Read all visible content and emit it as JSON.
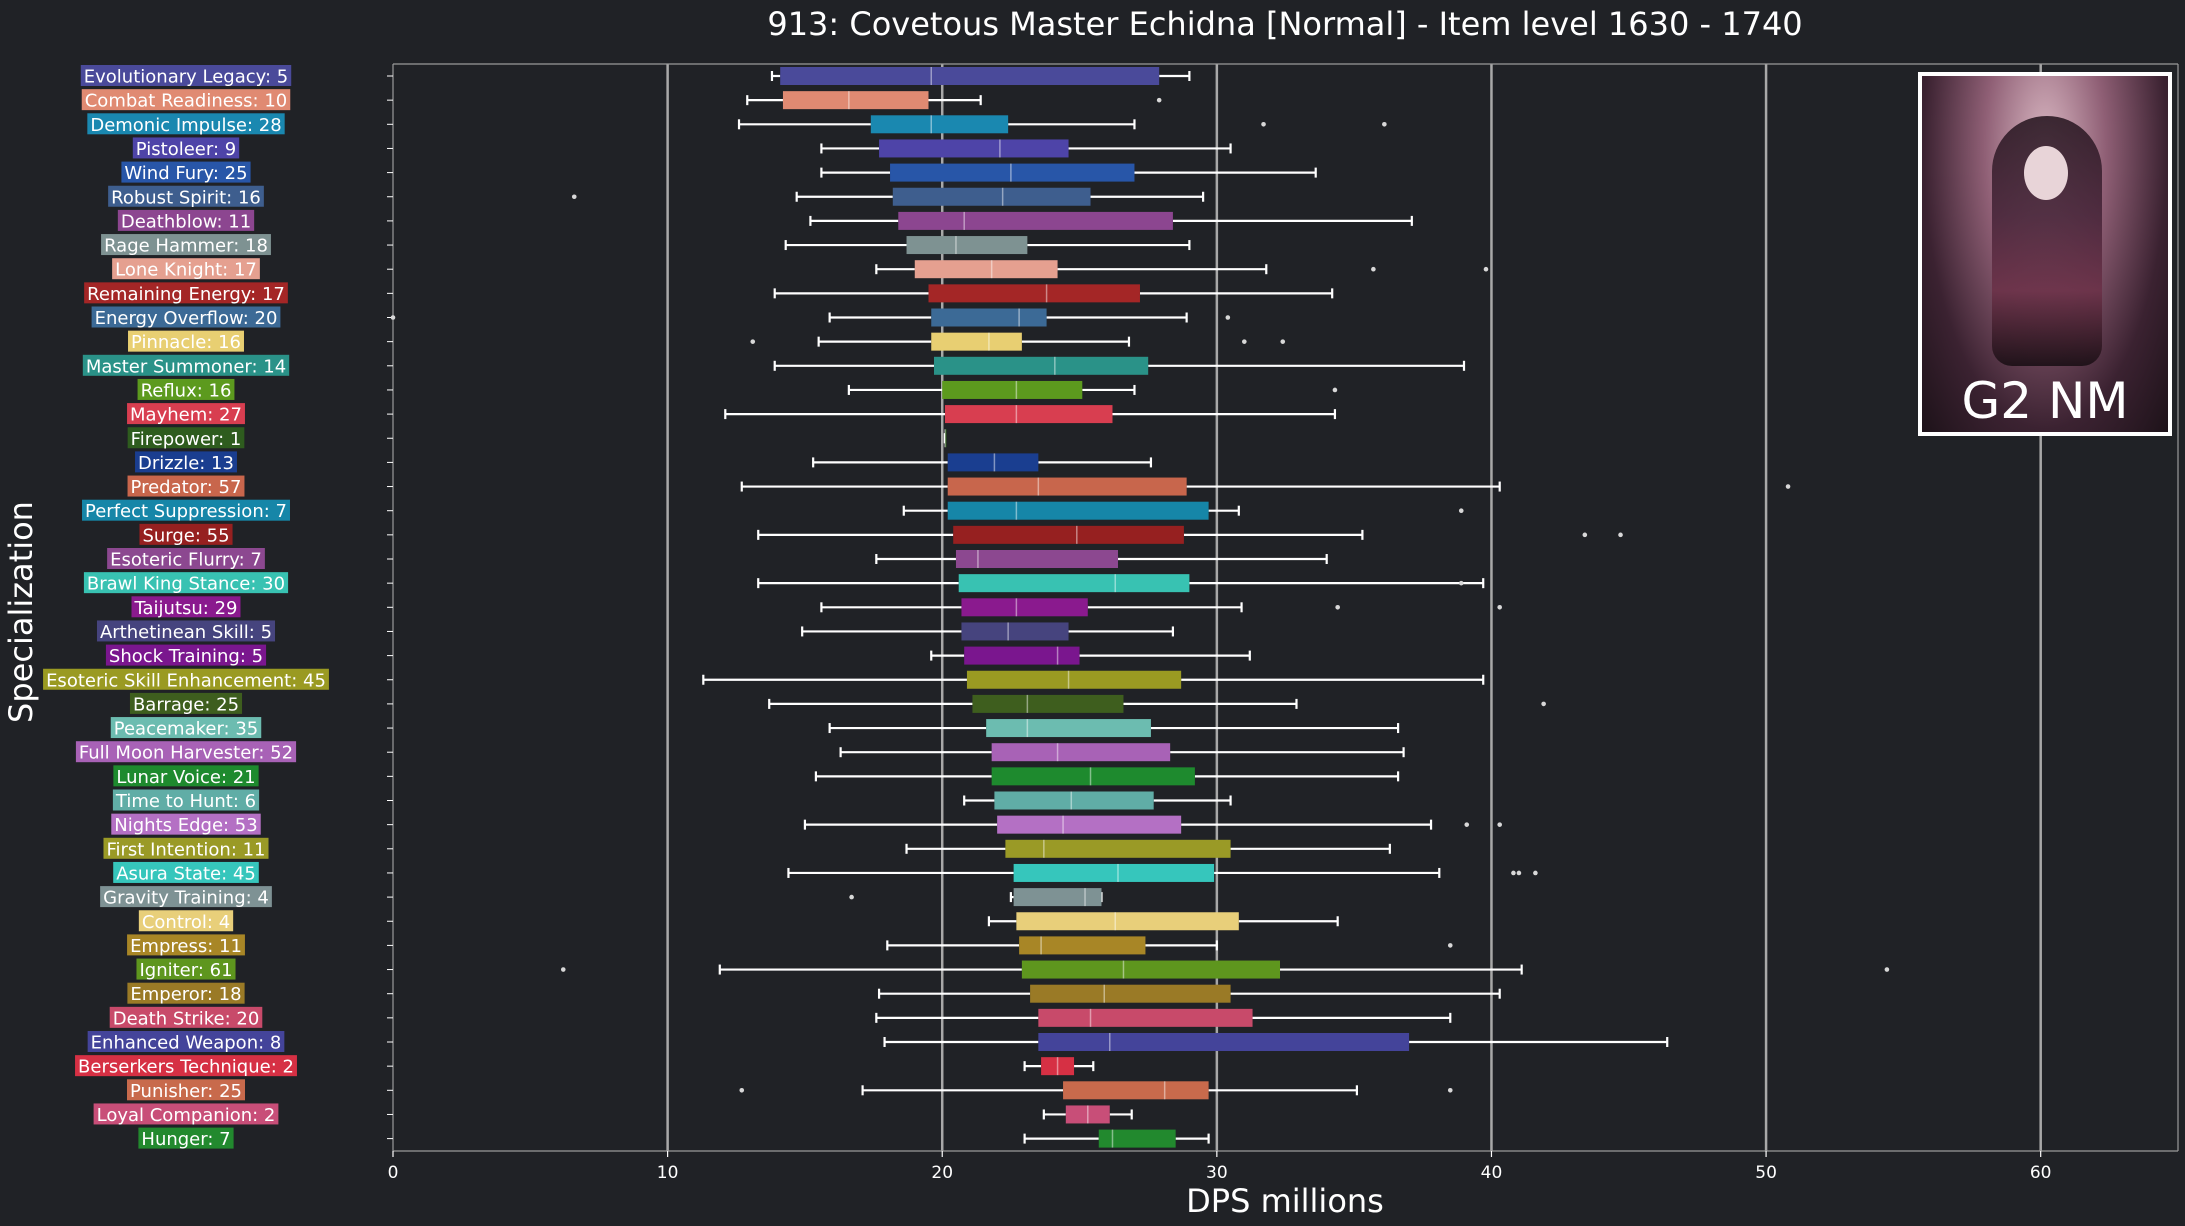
{
  "chart_data": {
    "type": "box",
    "title": "913: Covetous Master Echidna [Normal] - Item level 1630 - 1740",
    "xlabel": "DPS millions",
    "ylabel": "Specialization",
    "xlim": [
      0,
      65
    ],
    "xticks": [
      0,
      10,
      20,
      30,
      40,
      50,
      60
    ],
    "grid": "vertical",
    "inset_label": "G2 NM",
    "series": [
      {
        "label": "Evolutionary Legacy: 5",
        "color": "#4a4a9a",
        "whisker_low": 13.8,
        "q1": 14.1,
        "median": 19.6,
        "q3": 27.9,
        "whisker_high": 29.0,
        "outliers": []
      },
      {
        "label": "Combat Readiness: 10",
        "color": "#e08a72",
        "whisker_low": 12.9,
        "q1": 14.2,
        "median": 16.6,
        "q3": 19.5,
        "whisker_high": 21.4,
        "outliers": [
          27.9
        ]
      },
      {
        "label": "Demonic Impulse: 28",
        "color": "#1a88b0",
        "whisker_low": 12.6,
        "q1": 17.4,
        "median": 19.6,
        "q3": 22.4,
        "whisker_high": 27.0,
        "outliers": [
          31.7,
          36.1
        ]
      },
      {
        "label": "Pistoleer: 9",
        "color": "#4e44a8",
        "whisker_low": 15.6,
        "q1": 17.7,
        "median": 22.1,
        "q3": 24.6,
        "whisker_high": 30.5,
        "outliers": []
      },
      {
        "label": "Wind Fury: 25",
        "color": "#2856a8",
        "whisker_low": 15.6,
        "q1": 18.1,
        "median": 22.5,
        "q3": 27.0,
        "whisker_high": 33.6,
        "outliers": []
      },
      {
        "label": "Robust Spirit: 16",
        "color": "#3e5e8e",
        "whisker_low": 14.7,
        "q1": 18.2,
        "median": 22.2,
        "q3": 25.4,
        "whisker_high": 29.5,
        "outliers": [
          6.6
        ]
      },
      {
        "label": "Deathblow: 11",
        "color": "#8c4690",
        "whisker_low": 15.2,
        "q1": 18.4,
        "median": 20.8,
        "q3": 28.4,
        "whisker_high": 37.1,
        "outliers": []
      },
      {
        "label": "Rage Hammer: 18",
        "color": "#7e9292",
        "whisker_low": 14.3,
        "q1": 18.7,
        "median": 20.5,
        "q3": 23.1,
        "whisker_high": 29.0,
        "outliers": []
      },
      {
        "label": "Lone Knight: 17",
        "color": "#e5a090",
        "whisker_low": 17.6,
        "q1": 19.0,
        "median": 21.8,
        "q3": 24.2,
        "whisker_high": 31.8,
        "outliers": [
          35.7,
          39.8
        ]
      },
      {
        "label": "Remaining Energy: 17",
        "color": "#a42626",
        "whisker_low": 13.9,
        "q1": 19.5,
        "median": 23.8,
        "q3": 27.2,
        "whisker_high": 34.2,
        "outliers": []
      },
      {
        "label": "Energy Overflow: 20",
        "color": "#3c6a96",
        "whisker_low": 15.9,
        "q1": 19.6,
        "median": 22.8,
        "q3": 23.8,
        "whisker_high": 28.9,
        "outliers": [
          0.0,
          30.4
        ]
      },
      {
        "label": "Pinnacle: 16",
        "color": "#e8cf72",
        "whisker_low": 15.5,
        "q1": 19.6,
        "median": 21.7,
        "q3": 22.9,
        "whisker_high": 26.8,
        "outliers": [
          13.1,
          31.0,
          32.4
        ]
      },
      {
        "label": "Master Summoner: 14",
        "color": "#2a9288",
        "whisker_low": 13.9,
        "q1": 19.7,
        "median": 24.1,
        "q3": 27.5,
        "whisker_high": 39.0,
        "outliers": []
      },
      {
        "label": "Reflux: 16",
        "color": "#5c9a1e",
        "whisker_low": 16.6,
        "q1": 20.0,
        "median": 22.7,
        "q3": 25.1,
        "whisker_high": 27.0,
        "outliers": [
          34.3
        ]
      },
      {
        "label": "Mayhem: 27",
        "color": "#d83e50",
        "whisker_low": 12.1,
        "q1": 20.1,
        "median": 22.7,
        "q3": 26.2,
        "whisker_high": 34.3,
        "outliers": []
      },
      {
        "label": "Firepower: 1",
        "color": "#2e5c1e",
        "whisker_low": 20.1,
        "q1": 20.1,
        "median": 20.1,
        "q3": 20.1,
        "whisker_high": 20.1,
        "outliers": []
      },
      {
        "label": "Drizzle: 13",
        "color": "#1a3e90",
        "whisker_low": 15.3,
        "q1": 20.2,
        "median": 21.9,
        "q3": 23.5,
        "whisker_high": 27.6,
        "outliers": []
      },
      {
        "label": "Predator: 57",
        "color": "#c8664c",
        "whisker_low": 12.7,
        "q1": 20.2,
        "median": 23.5,
        "q3": 28.9,
        "whisker_high": 40.3,
        "outliers": [
          50.8
        ]
      },
      {
        "label": "Perfect Suppression: 7",
        "color": "#1686a8",
        "whisker_low": 18.6,
        "q1": 20.2,
        "median": 22.7,
        "q3": 29.7,
        "whisker_high": 30.8,
        "outliers": [
          38.9
        ]
      },
      {
        "label": "Surge: 55",
        "color": "#962020",
        "whisker_low": 13.3,
        "q1": 20.4,
        "median": 24.9,
        "q3": 28.8,
        "whisker_high": 35.3,
        "outliers": [
          43.4,
          44.7
        ]
      },
      {
        "label": "Esoteric Flurry: 7",
        "color": "#8c4890",
        "whisker_low": 17.6,
        "q1": 20.5,
        "median": 21.3,
        "q3": 26.4,
        "whisker_high": 34.0,
        "outliers": []
      },
      {
        "label": "Brawl King Stance: 30",
        "color": "#38c2b2",
        "whisker_low": 13.3,
        "q1": 20.6,
        "median": 26.3,
        "q3": 29.0,
        "whisker_high": 39.7,
        "outliers": [
          38.9
        ]
      },
      {
        "label": "Taijutsu: 29",
        "color": "#8a1a8e",
        "whisker_low": 15.6,
        "q1": 20.7,
        "median": 22.7,
        "q3": 25.3,
        "whisker_high": 30.9,
        "outliers": [
          34.4,
          40.3
        ]
      },
      {
        "label": "Arthetinean Skill: 5",
        "color": "#46447e",
        "whisker_low": 14.9,
        "q1": 20.7,
        "median": 22.4,
        "q3": 24.6,
        "whisker_high": 28.4,
        "outliers": []
      },
      {
        "label": "Shock Training: 5",
        "color": "#7a168e",
        "whisker_low": 19.6,
        "q1": 20.8,
        "median": 24.2,
        "q3": 25.0,
        "whisker_high": 31.2,
        "outliers": []
      },
      {
        "label": "Esoteric Skill Enhancement: 45",
        "color": "#9a9a22",
        "whisker_low": 11.3,
        "q1": 20.9,
        "median": 24.6,
        "q3": 28.7,
        "whisker_high": 39.7,
        "outliers": []
      },
      {
        "label": "Barrage: 25",
        "color": "#3e5e1e",
        "whisker_low": 13.7,
        "q1": 21.1,
        "median": 23.1,
        "q3": 26.6,
        "whisker_high": 32.9,
        "outliers": [
          41.9
        ]
      },
      {
        "label": "Peacemaker: 35",
        "color": "#6cbcb0",
        "whisker_low": 15.9,
        "q1": 21.6,
        "median": 23.1,
        "q3": 27.6,
        "whisker_high": 36.6,
        "outliers": []
      },
      {
        "label": "Full Moon Harvester: 52",
        "color": "#a862b6",
        "whisker_low": 16.3,
        "q1": 21.8,
        "median": 24.2,
        "q3": 28.3,
        "whisker_high": 36.8,
        "outliers": []
      },
      {
        "label": "Lunar Voice: 21",
        "color": "#1e8a2e",
        "whisker_low": 15.4,
        "q1": 21.8,
        "median": 25.4,
        "q3": 29.2,
        "whisker_high": 36.6,
        "outliers": []
      },
      {
        "label": "Time to Hunt: 6",
        "color": "#60ada6",
        "whisker_low": 20.8,
        "q1": 21.9,
        "median": 24.7,
        "q3": 27.7,
        "whisker_high": 30.5,
        "outliers": []
      },
      {
        "label": "Nights Edge: 53",
        "color": "#b470c4",
        "whisker_low": 15.0,
        "q1": 22.0,
        "median": 24.4,
        "q3": 28.7,
        "whisker_high": 37.8,
        "outliers": [
          39.1,
          40.3
        ]
      },
      {
        "label": "First Intention: 11",
        "color": "#9a9a26",
        "whisker_low": 18.7,
        "q1": 22.3,
        "median": 23.7,
        "q3": 30.5,
        "whisker_high": 36.3,
        "outliers": []
      },
      {
        "label": "Asura State: 45",
        "color": "#36c6bc",
        "whisker_low": 14.4,
        "q1": 22.6,
        "median": 26.4,
        "q3": 29.9,
        "whisker_high": 38.1,
        "outliers": [
          40.8,
          41.0,
          41.6
        ]
      },
      {
        "label": "Gravity Training: 4",
        "color": "#7e9294",
        "whisker_low": 22.5,
        "q1": 22.6,
        "median": 25.2,
        "q3": 25.8,
        "whisker_high": 25.8,
        "outliers": [
          16.7
        ]
      },
      {
        "label": "Control: 4",
        "color": "#e8cf7a",
        "whisker_low": 21.7,
        "q1": 22.7,
        "median": 26.3,
        "q3": 30.8,
        "whisker_high": 34.4,
        "outliers": []
      },
      {
        "label": "Empress: 11",
        "color": "#a88626",
        "whisker_low": 18.0,
        "q1": 22.8,
        "median": 23.6,
        "q3": 27.4,
        "whisker_high": 30.0,
        "outliers": [
          38.5
        ]
      },
      {
        "label": "Igniter: 61",
        "color": "#5e961e",
        "whisker_low": 11.9,
        "q1": 22.9,
        "median": 26.6,
        "q3": 32.3,
        "whisker_high": 41.1,
        "outliers": [
          6.2,
          54.4
        ]
      },
      {
        "label": "Emperor: 18",
        "color": "#9a7a26",
        "whisker_low": 17.7,
        "q1": 23.2,
        "median": 25.9,
        "q3": 30.5,
        "whisker_high": 40.3,
        "outliers": []
      },
      {
        "label": "Death Strike: 20",
        "color": "#c84a6a",
        "whisker_low": 17.6,
        "q1": 23.5,
        "median": 25.4,
        "q3": 31.3,
        "whisker_high": 38.5,
        "outliers": []
      },
      {
        "label": "Enhanced Weapon: 8",
        "color": "#44449a",
        "whisker_low": 17.9,
        "q1": 23.5,
        "median": 26.1,
        "q3": 37.0,
        "whisker_high": 46.4,
        "outliers": []
      },
      {
        "label": "Berserkers Technique: 2",
        "color": "#d63044",
        "whisker_low": 23.0,
        "q1": 23.6,
        "median": 24.2,
        "q3": 24.8,
        "whisker_high": 25.5,
        "outliers": []
      },
      {
        "label": "Punisher: 25",
        "color": "#c86a4c",
        "whisker_low": 17.1,
        "q1": 24.4,
        "median": 28.1,
        "q3": 29.7,
        "whisker_high": 35.1,
        "outliers": [
          12.7,
          38.5
        ]
      },
      {
        "label": "Loyal Companion: 2",
        "color": "#c84e78",
        "whisker_low": 23.7,
        "q1": 24.5,
        "median": 25.3,
        "q3": 26.1,
        "whisker_high": 26.9,
        "outliers": []
      },
      {
        "label": "Hunger: 7",
        "color": "#22892e",
        "whisker_low": 23.0,
        "q1": 25.7,
        "median": 26.2,
        "q3": 28.5,
        "whisker_high": 29.7,
        "outliers": []
      }
    ]
  }
}
